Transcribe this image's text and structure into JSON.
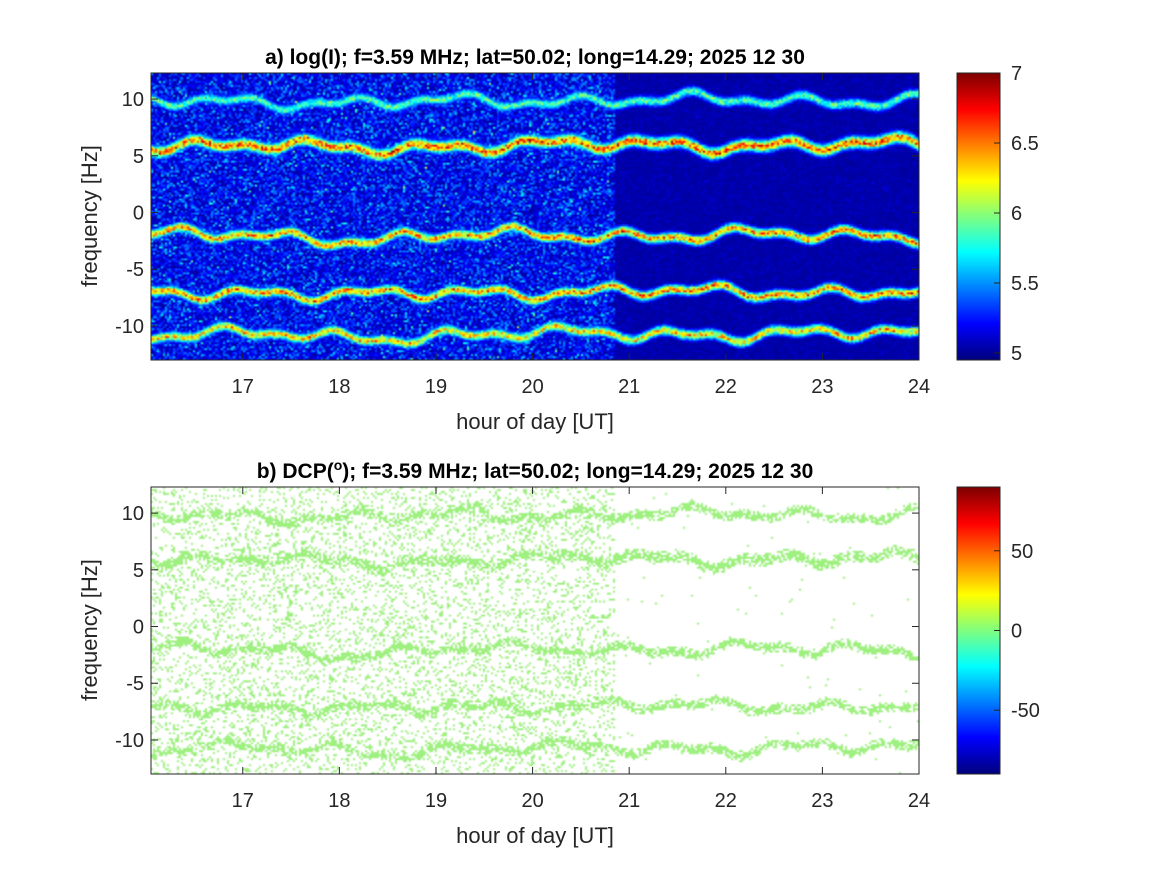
{
  "chart_data": [
    {
      "type": "heatmap",
      "id": "a",
      "title": "a) log(I); f=3.59 MHz;  lat=50.02; long=14.29; 2025 12 30",
      "title_base": "a) log(I); f=3.59 MHz;  lat=50.02; long=14.29; 2025 12 30",
      "xlabel": "hour of day [UT]",
      "ylabel": "frequency [Hz]",
      "xlim": [
        16.05,
        24
      ],
      "ylim": [
        -13,
        12.3
      ],
      "xticks": [
        "17",
        "18",
        "19",
        "20",
        "21",
        "22",
        "23",
        "24"
      ],
      "xtick_values": [
        17,
        18,
        19,
        20,
        21,
        22,
        23,
        24
      ],
      "yticks": [
        "10",
        "5",
        "0",
        "-5",
        "-10"
      ],
      "ytick_values": [
        10,
        5,
        0,
        -5,
        -10
      ],
      "colormap": "jet",
      "clim": [
        4.95,
        7.0
      ],
      "colorbar_ticks": [
        "7",
        "6.5",
        "6",
        "5.5",
        "5"
      ],
      "colorbar_tick_values": [
        7,
        6.5,
        6,
        5.5,
        5
      ],
      "background_value": 5.0,
      "noise_change_hour": 20.85,
      "traces": [
        {
          "base_frequency": 9.9,
          "peak": 6.1
        },
        {
          "base_frequency": 5.95,
          "peak": 6.85
        },
        {
          "base_frequency": -2.0,
          "peak": 6.75
        },
        {
          "base_frequency": -7.0,
          "peak": 6.75
        },
        {
          "base_frequency": -10.7,
          "peak": 6.6
        }
      ]
    },
    {
      "type": "heatmap",
      "id": "b",
      "title": "b) DCP(o); f=3.59 MHz;  lat=50.02; long=14.29; 2025 12 30",
      "title_base": "b) DCP(",
      "title_superscript": "o",
      "title_rest": "); f=3.59 MHz;  lat=50.02; long=14.29; 2025 12 30",
      "xlabel": "hour of day [UT]",
      "ylabel": "frequency [Hz]",
      "xlim": [
        16.05,
        24
      ],
      "ylim": [
        -13,
        12.3
      ],
      "xticks": [
        "17",
        "18",
        "19",
        "20",
        "21",
        "22",
        "23",
        "24"
      ],
      "xtick_values": [
        17,
        18,
        19,
        20,
        21,
        22,
        23,
        24
      ],
      "yticks": [
        "10",
        "5",
        "0",
        "-5",
        "-10"
      ],
      "ytick_values": [
        10,
        5,
        0,
        -5,
        -10
      ],
      "colormap": "jet",
      "clim": [
        -90,
        90
      ],
      "colorbar_ticks": [
        "50",
        "0",
        "-50"
      ],
      "colorbar_tick_values": [
        50,
        0,
        -50
      ],
      "pixel_value": 20,
      "pixel_color": "#9EF07F",
      "noise_change_hour": 20.85,
      "traces": [
        {
          "base_frequency": 9.9
        },
        {
          "base_frequency": 5.95
        },
        {
          "base_frequency": -2.0
        },
        {
          "base_frequency": -7.0
        },
        {
          "base_frequency": -10.7
        }
      ]
    }
  ]
}
